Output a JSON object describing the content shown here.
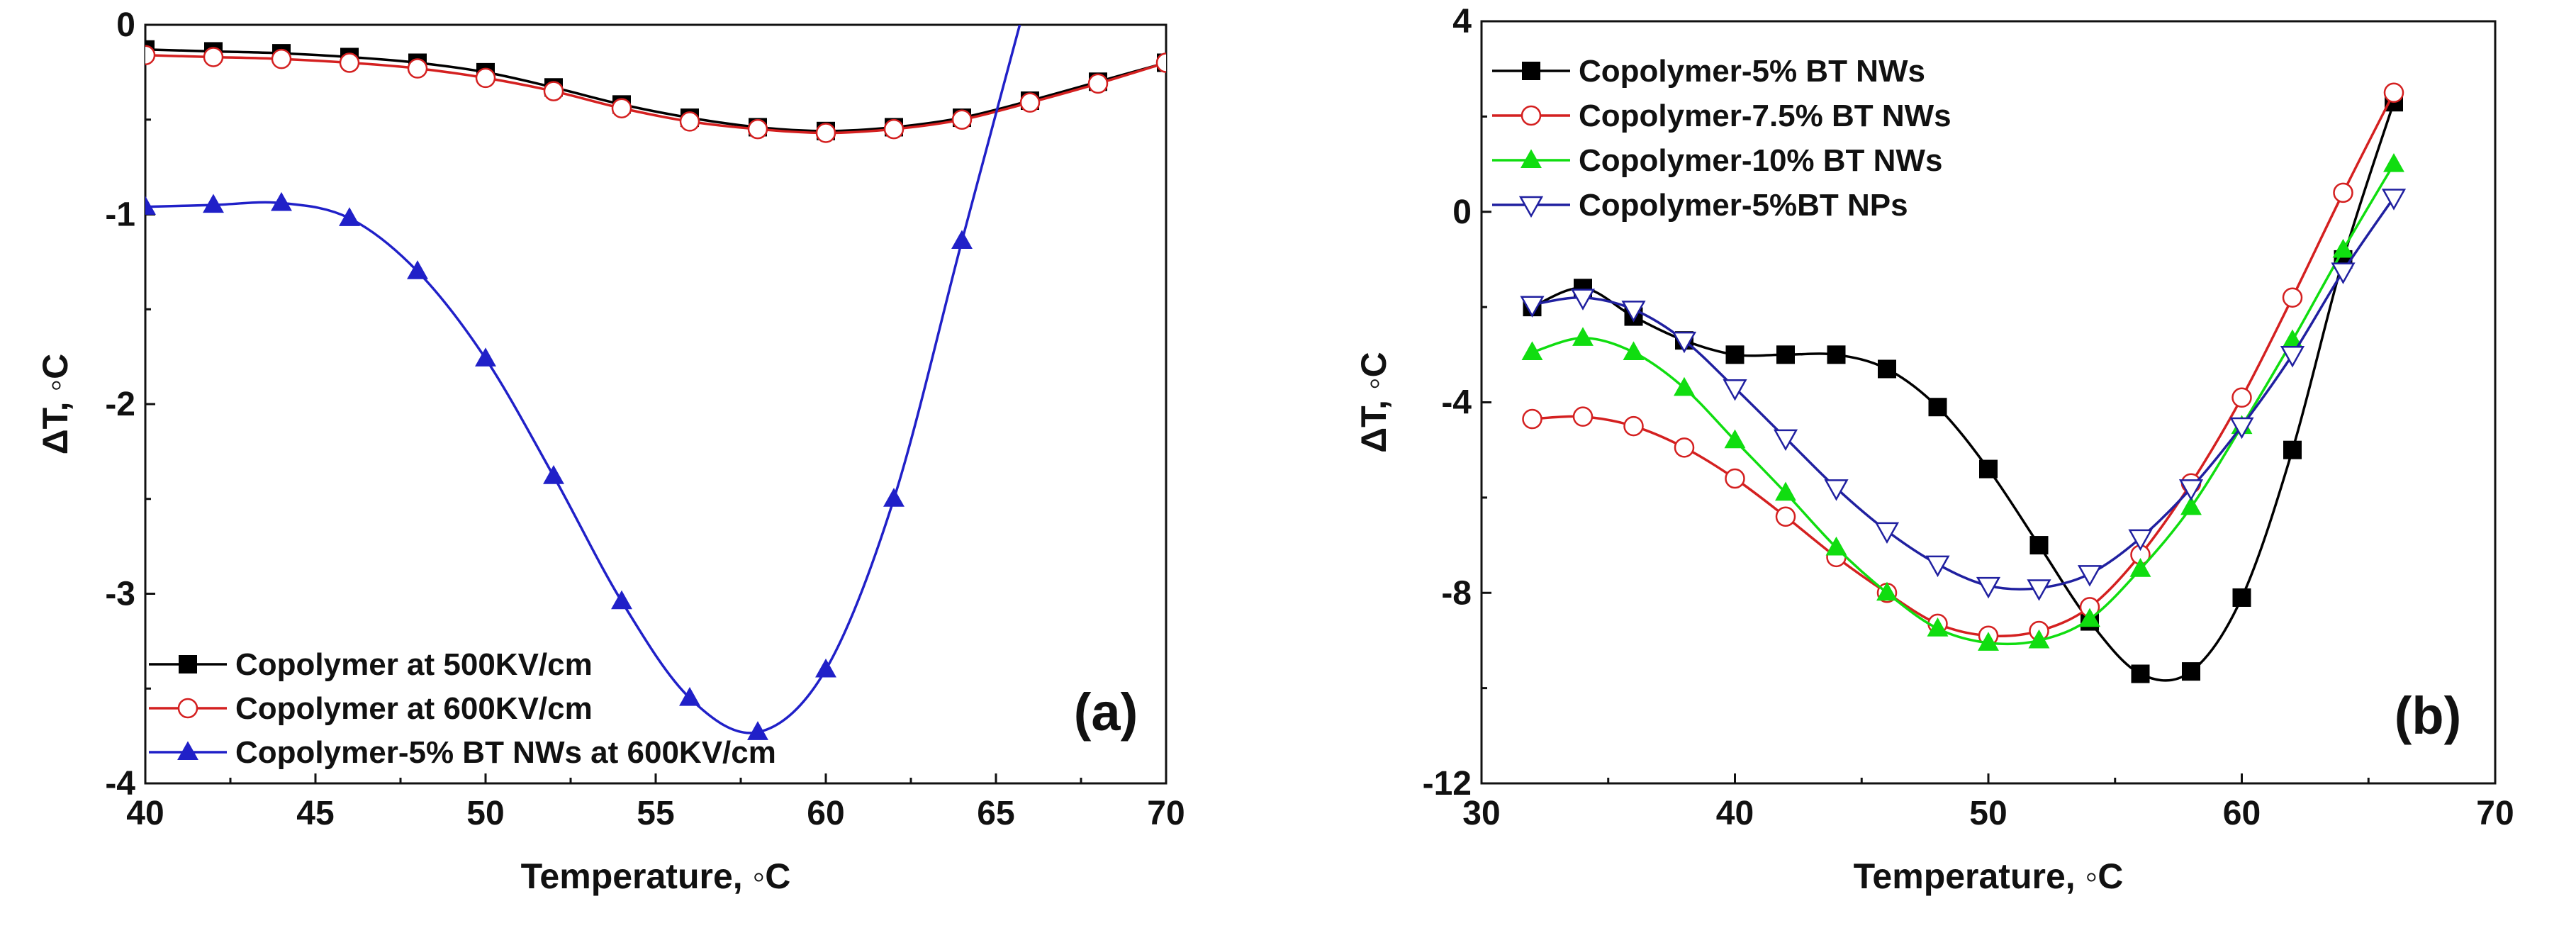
{
  "figure": {
    "background": "#ffffff"
  },
  "chart_data": [
    {
      "panel": "a",
      "type": "line",
      "panel_label": "(a)",
      "xlabel": "Temperature, ◦C",
      "ylabel": "ΔT, ◦C",
      "xlim": [
        40,
        70
      ],
      "ylim": [
        -4,
        0
      ],
      "xticks": [
        40,
        45,
        50,
        55,
        60,
        65,
        70
      ],
      "xtick_labels": [
        "40",
        "45",
        "50",
        "55",
        "60",
        "65",
        "70"
      ],
      "yticks": [
        -4,
        -3,
        -2,
        -1,
        0
      ],
      "ytick_labels": [
        "-4",
        "-3",
        "-2",
        "-1",
        "0"
      ],
      "legend_position": "bottom-left",
      "series": [
        {
          "name": "Copolymer at 500KV/cm",
          "color": "#000000",
          "marker": "square-filled",
          "x": [
            40,
            42,
            44,
            46,
            48,
            50,
            52,
            54,
            56,
            58,
            60,
            62,
            64,
            66,
            68,
            70
          ],
          "y": [
            -0.13,
            -0.14,
            -0.15,
            -0.17,
            -0.2,
            -0.25,
            -0.33,
            -0.42,
            -0.49,
            -0.54,
            -0.56,
            -0.54,
            -0.49,
            -0.4,
            -0.3,
            -0.2
          ]
        },
        {
          "name": "Copolymer at 600KV/cm",
          "color": "#d42020",
          "marker": "circle-open",
          "x": [
            40,
            42,
            44,
            46,
            48,
            50,
            52,
            54,
            56,
            58,
            60,
            62,
            64,
            66,
            68,
            70
          ],
          "y": [
            -0.16,
            -0.17,
            -0.18,
            -0.2,
            -0.23,
            -0.28,
            -0.35,
            -0.44,
            -0.51,
            -0.55,
            -0.57,
            -0.55,
            -0.5,
            -0.41,
            -0.31,
            -0.2
          ]
        },
        {
          "name": "Copolymer-5% BT NWs at 600KV/cm",
          "color": "#2020c8",
          "marker": "triangle-filled",
          "x": [
            40,
            42,
            44,
            46,
            48,
            50,
            52,
            54,
            56,
            58,
            60,
            62,
            64,
            65.7
          ],
          "y": [
            -0.96,
            -0.95,
            -0.94,
            -1.02,
            -1.3,
            -1.76,
            -2.38,
            -3.04,
            -3.55,
            -3.73,
            -3.4,
            -2.5,
            -1.14,
            0
          ],
          "marker_count": 13
        }
      ]
    },
    {
      "panel": "b",
      "type": "line",
      "panel_label": "(b)",
      "xlabel": "Temperature, ◦C",
      "ylabel": "ΔT, ◦C",
      "xlim": [
        30,
        70
      ],
      "ylim": [
        -12,
        4
      ],
      "xticks": [
        30,
        40,
        50,
        60,
        70
      ],
      "xtick_labels": [
        "30",
        "40",
        "50",
        "60",
        "70"
      ],
      "yticks": [
        -12,
        -8,
        -4,
        0,
        4
      ],
      "ytick_labels": [
        "-12",
        "-8",
        "-4",
        "0",
        "4"
      ],
      "legend_position": "top-left",
      "series": [
        {
          "name": "Copolymer-5% BT NWs",
          "color": "#000000",
          "marker": "square-filled",
          "x": [
            32,
            34,
            36,
            38,
            40,
            42,
            44,
            46,
            48,
            50,
            52,
            54,
            56,
            58,
            60,
            62,
            64,
            66
          ],
          "y": [
            -2.0,
            -1.6,
            -2.2,
            -2.7,
            -3.0,
            -3.0,
            -3.0,
            -3.3,
            -4.1,
            -5.4,
            -7.0,
            -8.6,
            -9.7,
            -9.65,
            -8.1,
            -5.0,
            -1.0,
            2.3
          ]
        },
        {
          "name": "Copolymer-7.5% BT NWs",
          "color": "#d42020",
          "marker": "circle-open",
          "x": [
            32,
            34,
            36,
            38,
            40,
            42,
            44,
            46,
            48,
            50,
            52,
            54,
            56,
            58,
            60,
            62,
            64,
            66
          ],
          "y": [
            -4.35,
            -4.3,
            -4.5,
            -4.95,
            -5.6,
            -6.4,
            -7.25,
            -8.0,
            -8.65,
            -8.9,
            -8.8,
            -8.3,
            -7.2,
            -5.7,
            -3.9,
            -1.8,
            0.4,
            2.5
          ]
        },
        {
          "name": "Copolymer-10% BT NWs",
          "color": "#10dd10",
          "marker": "triangle-filled",
          "x": [
            32,
            34,
            36,
            38,
            40,
            42,
            44,
            46,
            48,
            50,
            52,
            54,
            56,
            58,
            60,
            62,
            64,
            66
          ],
          "y": [
            -2.95,
            -2.65,
            -2.95,
            -3.7,
            -4.8,
            -5.9,
            -7.05,
            -8.0,
            -8.75,
            -9.05,
            -9.0,
            -8.55,
            -7.5,
            -6.2,
            -4.5,
            -2.7,
            -0.8,
            1.0
          ]
        },
        {
          "name": "Copolymer-5%BT NPs",
          "color": "#2020a0",
          "marker": "triangle-down-open",
          "x": [
            32,
            34,
            36,
            38,
            40,
            42,
            44,
            46,
            48,
            50,
            52,
            54,
            56,
            58,
            60,
            62,
            64,
            66
          ],
          "y": [
            -1.95,
            -1.8,
            -2.05,
            -2.7,
            -3.7,
            -4.75,
            -5.8,
            -6.7,
            -7.4,
            -7.85,
            -7.9,
            -7.6,
            -6.85,
            -5.8,
            -4.5,
            -3.0,
            -1.25,
            0.3
          ]
        }
      ]
    }
  ]
}
